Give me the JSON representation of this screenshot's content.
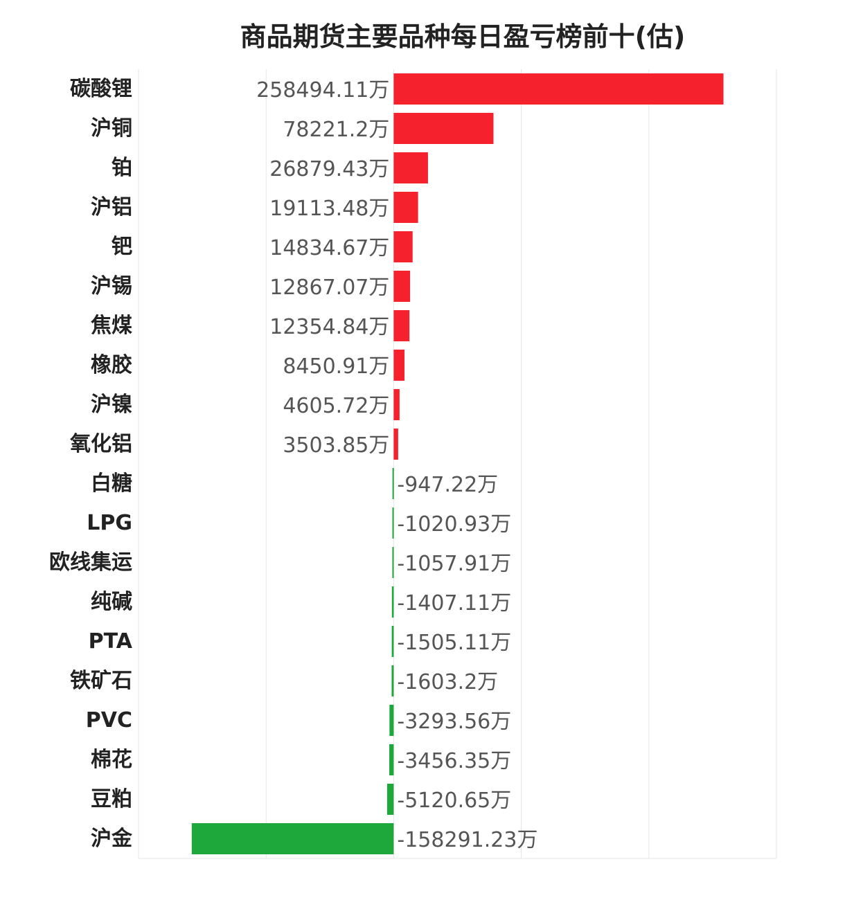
{
  "chart_data": {
    "type": "bar",
    "orientation": "horizontal",
    "title": "商品期货主要品种每日盈亏榜前十(估)",
    "unit": "万",
    "xlim": [
      -200000,
      300000
    ],
    "grid": true,
    "categories": [
      "碳酸锂",
      "沪铜",
      "铂",
      "沪铝",
      "钯",
      "沪锡",
      "焦煤",
      "橡胶",
      "沪镍",
      "氧化铝",
      "白糖",
      "LPG",
      "欧线集运",
      "纯碱",
      "PTA",
      "铁矿石",
      "PVC",
      "棉花",
      "豆粕",
      "沪金"
    ],
    "values": [
      258494.11,
      78221.2,
      26879.43,
      19113.48,
      14834.67,
      12867.07,
      12354.84,
      8450.91,
      4605.72,
      3503.85,
      -947.22,
      -1020.93,
      -1057.91,
      -1407.11,
      -1505.11,
      -1603.2,
      -3293.56,
      -3456.35,
      -5120.65,
      -158291.23
    ],
    "value_labels": [
      "258494.11万",
      "78221.2万",
      "26879.43万",
      "19113.48万",
      "14834.67万",
      "12867.07万",
      "12354.84万",
      "8450.91万",
      "4605.72万",
      "3503.85万",
      "-947.22万",
      "-1020.93万",
      "-1057.91万",
      "-1407.11万",
      "-1505.11万",
      "-1603.2万",
      "-3293.56万",
      "-3456.35万",
      "-5120.65万",
      "-158291.23万"
    ],
    "colors": {
      "positive": "#f5222d",
      "negative": "#1ea83c"
    }
  }
}
